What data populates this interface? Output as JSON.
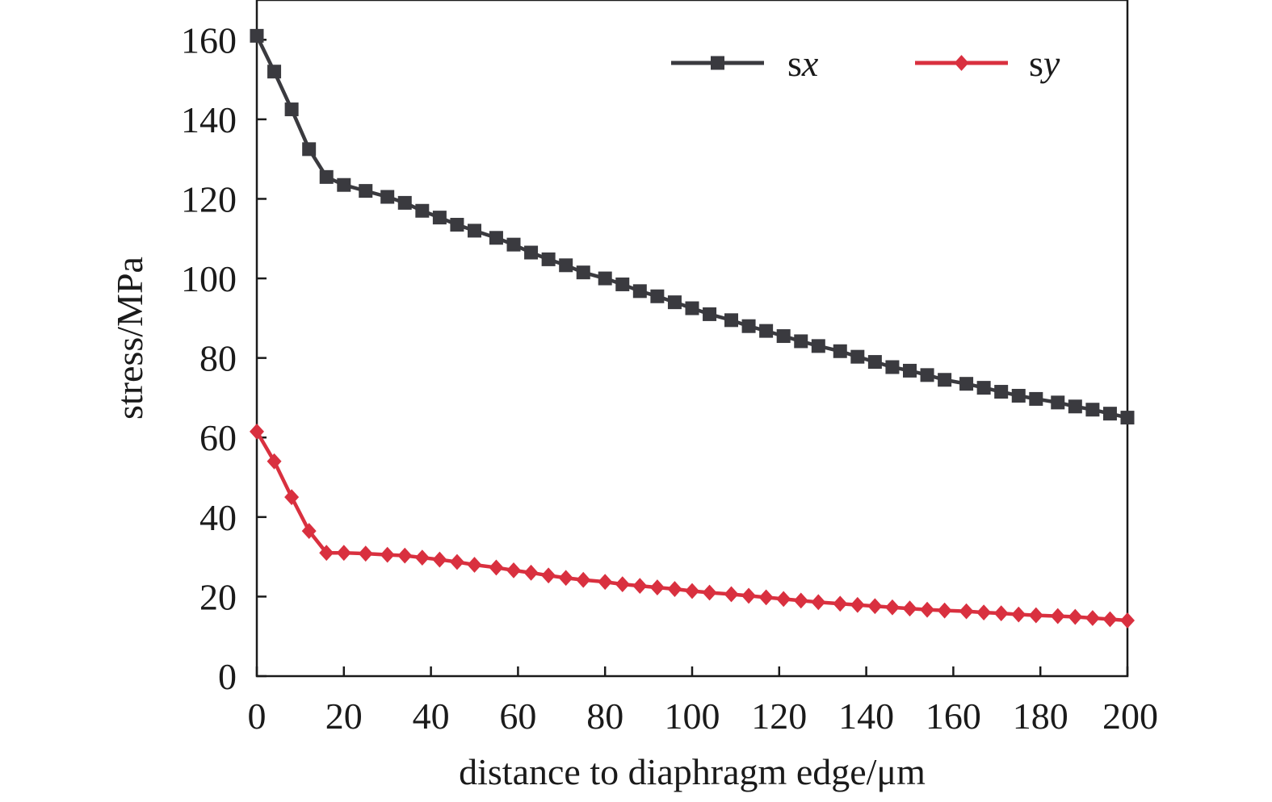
{
  "chart_data": {
    "type": "line",
    "title": "",
    "xlabel": "distance to diaphragm edge/μm",
    "ylabel": "stress/MPa",
    "xlim": [
      0,
      200
    ],
    "ylim": [
      0,
      170
    ],
    "xticks": [
      0,
      20,
      40,
      60,
      80,
      100,
      120,
      140,
      160,
      180,
      200
    ],
    "yticks": [
      0,
      20,
      40,
      60,
      80,
      100,
      120,
      140,
      160
    ],
    "grid": false,
    "legend_position": "top-right",
    "x": [
      0,
      4,
      8,
      12,
      16,
      20,
      25,
      30,
      34,
      38,
      42,
      46,
      50,
      55,
      59,
      63,
      67,
      71,
      75,
      80,
      84,
      88,
      92,
      96,
      100,
      104,
      109,
      113,
      117,
      121,
      125,
      129,
      134,
      138,
      142,
      146,
      150,
      154,
      158,
      163,
      167,
      171,
      175,
      179,
      184,
      188,
      192,
      196,
      200
    ],
    "series": [
      {
        "name": "sx",
        "name_base": "s",
        "name_sub": "x",
        "color": "#3a3a3f",
        "marker": "square",
        "values": [
          161,
          152,
          142.5,
          132.5,
          125.5,
          123.5,
          122,
          120.5,
          119,
          117,
          115.3,
          113.5,
          112,
          110.2,
          108.5,
          106.5,
          104.8,
          103.3,
          101.5,
          100,
          98.5,
          96.8,
          95.5,
          94,
          92.5,
          91,
          89.5,
          88,
          86.8,
          85.5,
          84.2,
          83,
          81.7,
          80.3,
          79,
          77.7,
          76.8,
          75.7,
          74.5,
          73.5,
          72.5,
          71.5,
          70.5,
          69.7,
          68.8,
          67.8,
          67,
          66,
          65
        ]
      },
      {
        "name": "sy",
        "name_base": "s",
        "name_sub": "y",
        "color": "#d9303f",
        "marker": "diamond",
        "values": [
          61.5,
          54,
          45,
          36.5,
          31,
          31,
          30.8,
          30.5,
          30.3,
          29.8,
          29.3,
          28.7,
          28,
          27.3,
          26.6,
          26,
          25.3,
          24.7,
          24.2,
          23.7,
          23.1,
          22.7,
          22.3,
          21.9,
          21.4,
          21,
          20.6,
          20.2,
          19.8,
          19.4,
          19,
          18.6,
          18.2,
          17.9,
          17.6,
          17.3,
          17,
          16.7,
          16.5,
          16.3,
          16,
          15.8,
          15.5,
          15.3,
          15.1,
          14.9,
          14.6,
          14.3,
          14
        ]
      }
    ]
  }
}
